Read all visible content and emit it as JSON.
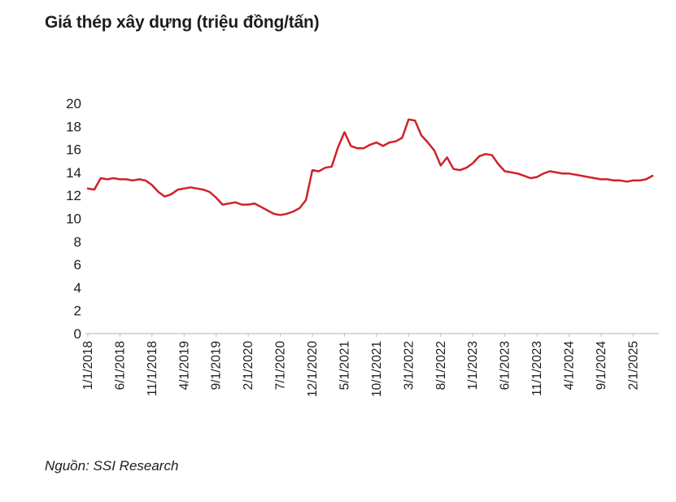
{
  "page": {
    "title": "Giá thép xây dựng (triệu đồng/tấn)",
    "source_note": "Nguồn: SSI Research"
  },
  "chart_data": {
    "type": "line",
    "title": "Giá thép xây dựng (triệu đồng/tấn)",
    "xlabel": "",
    "ylabel": "",
    "ylim": [
      0,
      20
    ],
    "y_ticks": [
      0,
      2,
      4,
      6,
      8,
      10,
      12,
      14,
      16,
      18,
      20
    ],
    "grid": false,
    "legend": "none",
    "line_color": "#d0212a",
    "axis_color": "#bfbfbf",
    "x_start": "1/2018",
    "x_frequency": "monthly",
    "x_tick_every": 5,
    "x_tick_labels": [
      "1/1/2018",
      "6/1/2018",
      "11/1/2018",
      "4/1/2019",
      "9/1/2019",
      "2/1/2020",
      "7/1/2020",
      "12/1/2020",
      "5/1/2021",
      "10/1/2021",
      "3/1/2022",
      "8/1/2022",
      "1/1/2023",
      "6/1/2023",
      "11/1/2023",
      "4/1/2024",
      "9/1/2024",
      "2/1/2025"
    ],
    "series": [
      {
        "name": "Giá thép xây dựng (triệu đồng/tấn)",
        "values": [
          12.6,
          12.5,
          13.5,
          13.4,
          13.5,
          13.4,
          13.4,
          13.3,
          13.4,
          13.3,
          12.9,
          12.3,
          11.9,
          12.1,
          12.5,
          12.6,
          12.7,
          12.6,
          12.5,
          12.3,
          11.8,
          11.2,
          11.3,
          11.4,
          11.2,
          11.2,
          11.3,
          11.0,
          10.7,
          10.4,
          10.3,
          10.4,
          10.6,
          10.9,
          11.6,
          14.2,
          14.1,
          14.4,
          14.5,
          16.2,
          17.5,
          16.3,
          16.1,
          16.1,
          16.4,
          16.6,
          16.3,
          16.6,
          16.7,
          17.0,
          18.6,
          18.5,
          17.2,
          16.6,
          15.9,
          14.6,
          15.3,
          14.3,
          14.2,
          14.4,
          14.8,
          15.4,
          15.6,
          15.5,
          14.7,
          14.1,
          14.0,
          13.9,
          13.7,
          13.5,
          13.6,
          13.9,
          14.1,
          14.0,
          13.9,
          13.9,
          13.8,
          13.7,
          13.6,
          13.5,
          13.4,
          13.4,
          13.3,
          13.3,
          13.2,
          13.3,
          13.3,
          13.4,
          13.7
        ]
      }
    ]
  }
}
